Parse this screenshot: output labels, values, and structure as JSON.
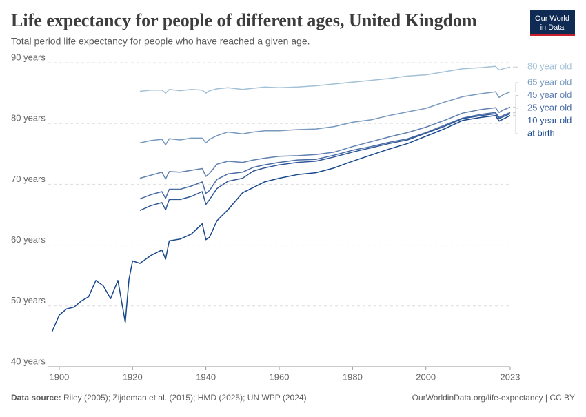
{
  "title": "Life expectancy for people of different ages, United Kingdom",
  "subtitle": "Total period life expectancy for people who have reached a given age.",
  "logo": [
    "Our World",
    "in Data"
  ],
  "footer": {
    "source_label": "Data source:",
    "source": "Riley (2005); Zijdeman et al. (2015); HMD (2025); UN WPP (2024)",
    "url": "OurWorldinData.org/life-expectancy | CC BY"
  },
  "chart_data": {
    "type": "line",
    "x": [
      1898,
      1900,
      1902,
      1904,
      1906,
      1908,
      1910,
      1912,
      1914,
      1916,
      1918,
      1919,
      1920,
      1922,
      1925,
      1928,
      1929,
      1930,
      1933,
      1936,
      1939,
      1940,
      1941,
      1943,
      1946,
      1950,
      1953,
      1956,
      1960,
      1965,
      1970,
      1975,
      1980,
      1985,
      1990,
      1995,
      2000,
      2005,
      2010,
      2015,
      2019,
      2020,
      2021,
      2023
    ],
    "xlim": [
      1897,
      2023
    ],
    "xticks": [
      1900,
      1920,
      1940,
      1960,
      1980,
      2000,
      2023
    ],
    "ylim": [
      40,
      90
    ],
    "yticks": [
      {
        "value": 40,
        "label": "40 years"
      },
      {
        "value": 50,
        "label": "50 years"
      },
      {
        "value": 60,
        "label": "60 years"
      },
      {
        "value": 70,
        "label": "70 years"
      },
      {
        "value": 80,
        "label": "80 years"
      },
      {
        "value": 90,
        "label": "90 years"
      }
    ],
    "grid": true,
    "series": [
      {
        "name": "80 year old",
        "color": "#a3c1d6",
        "values": [
          null,
          null,
          null,
          null,
          null,
          null,
          null,
          null,
          null,
          null,
          null,
          null,
          null,
          85.3,
          85.5,
          85.5,
          85.0,
          85.6,
          85.4,
          85.6,
          85.5,
          85.0,
          85.4,
          85.7,
          85.9,
          85.6,
          85.8,
          86.0,
          85.9,
          86.0,
          86.2,
          86.5,
          86.8,
          87.1,
          87.4,
          87.8,
          88.0,
          88.5,
          89.0,
          89.2,
          89.4,
          88.8,
          89.0,
          89.3
        ]
      },
      {
        "name": "65 year old",
        "color": "#7899bf",
        "values": [
          null,
          null,
          null,
          null,
          null,
          null,
          null,
          null,
          null,
          null,
          null,
          null,
          null,
          76.8,
          77.2,
          77.4,
          76.5,
          77.5,
          77.3,
          77.6,
          77.6,
          76.8,
          77.4,
          78.0,
          78.6,
          78.3,
          78.6,
          78.8,
          78.8,
          79.0,
          79.1,
          79.5,
          80.2,
          80.6,
          81.3,
          81.9,
          82.5,
          83.5,
          84.4,
          84.9,
          85.2,
          84.3,
          84.7,
          85.2
        ]
      },
      {
        "name": "45 year old",
        "color": "#5f80b0",
        "values": [
          null,
          null,
          null,
          null,
          null,
          null,
          null,
          null,
          null,
          null,
          null,
          null,
          null,
          71.0,
          71.5,
          72.0,
          70.9,
          72.1,
          72.0,
          72.3,
          72.6,
          71.3,
          71.8,
          73.3,
          73.8,
          73.6,
          74.0,
          74.3,
          74.6,
          74.7,
          74.9,
          75.3,
          76.2,
          77.0,
          77.8,
          78.5,
          79.4,
          80.5,
          81.7,
          82.3,
          82.6,
          81.8,
          82.2,
          82.7
        ]
      },
      {
        "name": "25 year old",
        "color": "#4a6ca6",
        "values": [
          null,
          null,
          null,
          null,
          null,
          null,
          null,
          null,
          null,
          null,
          null,
          null,
          null,
          67.6,
          68.3,
          68.8,
          67.7,
          69.2,
          69.2,
          69.7,
          70.4,
          68.5,
          69.0,
          70.8,
          71.7,
          72.0,
          72.8,
          73.2,
          73.6,
          74.0,
          74.1,
          74.8,
          75.6,
          76.2,
          76.9,
          77.5,
          78.5,
          79.7,
          80.9,
          81.5,
          81.8,
          81.0,
          81.3,
          81.8
        ]
      },
      {
        "name": "10 year old",
        "color": "#2f5899",
        "values": [
          null,
          null,
          null,
          null,
          null,
          null,
          null,
          null,
          null,
          null,
          null,
          null,
          null,
          65.7,
          66.5,
          67.0,
          65.8,
          67.5,
          67.5,
          68.0,
          68.8,
          66.7,
          67.5,
          69.3,
          70.5,
          71.0,
          72.2,
          72.7,
          73.2,
          73.6,
          73.8,
          74.5,
          75.3,
          76.0,
          76.7,
          77.3,
          78.4,
          79.5,
          80.8,
          81.3,
          81.6,
          80.8,
          81.1,
          81.6
        ]
      },
      {
        "name": "at birth",
        "color": "#17478d",
        "values": [
          45.7,
          48.5,
          49.5,
          49.8,
          50.8,
          51.5,
          54.2,
          53.3,
          51.2,
          54.2,
          47.3,
          54.3,
          57.4,
          57.0,
          58.3,
          59.2,
          57.7,
          60.7,
          61.0,
          61.8,
          63.5,
          60.9,
          61.3,
          64.0,
          65.8,
          68.6,
          69.5,
          70.4,
          71.0,
          71.6,
          71.9,
          72.7,
          73.8,
          74.8,
          75.8,
          76.7,
          77.9,
          79.1,
          80.5,
          81.0,
          81.3,
          80.4,
          80.7,
          81.3
        ]
      }
    ]
  }
}
